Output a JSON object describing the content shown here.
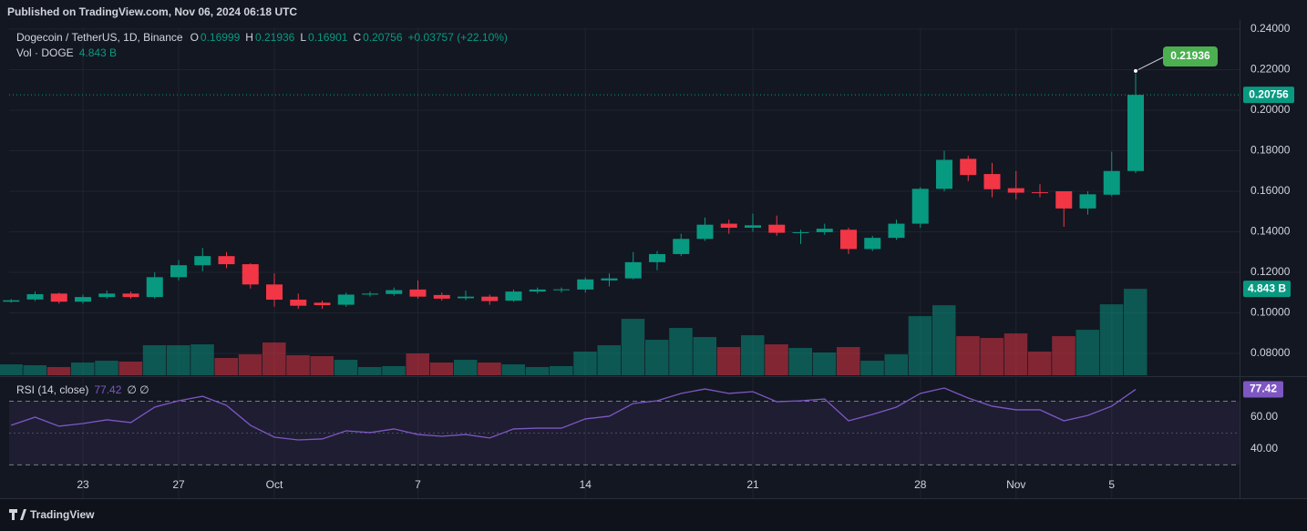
{
  "published": "Published on TradingView.com, Nov 06, 2024 06:18 UTC",
  "footer": {
    "brand": "TradingView"
  },
  "chart_data": {
    "type": "candlestick",
    "title": "Dogecoin / TetherUS, 1D, Binance",
    "ohlc_letters": [
      "O",
      "H",
      "L",
      "C"
    ],
    "change_label": "+0.03757 (+22.10%)",
    "volume_title": "Vol · DOGE",
    "volume_label": "4.843 B",
    "categories": [
      null,
      null,
      null,
      "23",
      null,
      null,
      null,
      "27",
      null,
      null,
      null,
      "Oct",
      null,
      null,
      null,
      null,
      null,
      "7",
      null,
      null,
      null,
      null,
      null,
      null,
      "14",
      null,
      null,
      null,
      null,
      null,
      null,
      "21",
      null,
      null,
      null,
      null,
      null,
      null,
      "28",
      null,
      null,
      null,
      "Nov",
      null,
      null,
      null,
      "5",
      null
    ],
    "open": [
      0.1055,
      0.1066,
      0.1095,
      0.1055,
      0.1078,
      0.1095,
      0.1078,
      0.1176,
      0.1235,
      0.128,
      0.124,
      0.114,
      0.1065,
      0.105,
      0.104,
      0.109,
      0.1093,
      0.1115,
      0.1088,
      0.1072,
      0.108,
      0.106,
      0.1105,
      0.1112,
      0.1115,
      0.116,
      0.117,
      0.125,
      0.129,
      0.1365,
      0.144,
      0.142,
      0.1435,
      0.1395,
      0.1398,
      0.141,
      0.1315,
      0.137,
      0.144,
      0.1612,
      0.176,
      0.1685,
      0.1615,
      0.1595,
      0.16,
      0.1515,
      0.1583,
      0.16999
    ],
    "high": [
      0.1068,
      0.1105,
      0.11,
      0.109,
      0.111,
      0.1105,
      0.12,
      0.126,
      0.132,
      0.13,
      0.1245,
      0.1195,
      0.1095,
      0.106,
      0.11,
      0.1105,
      0.1125,
      0.116,
      0.11,
      0.111,
      0.109,
      0.1115,
      0.1125,
      0.1125,
      0.1175,
      0.1195,
      0.13,
      0.1305,
      0.139,
      0.147,
      0.146,
      0.149,
      0.148,
      0.141,
      0.144,
      0.142,
      0.138,
      0.146,
      0.162,
      0.18,
      0.1775,
      0.174,
      0.17,
      0.1635,
      0.16,
      0.16,
      0.1795,
      0.21936
    ],
    "low": [
      0.105,
      0.1058,
      0.1045,
      0.1045,
      0.107,
      0.107,
      0.107,
      0.116,
      0.1205,
      0.122,
      0.112,
      0.103,
      0.102,
      0.102,
      0.103,
      0.108,
      0.1085,
      0.107,
      0.106,
      0.1062,
      0.104,
      0.1055,
      0.1095,
      0.11,
      0.11,
      0.113,
      0.1165,
      0.121,
      0.128,
      0.1355,
      0.139,
      0.14,
      0.138,
      0.134,
      0.1385,
      0.129,
      0.1305,
      0.136,
      0.142,
      0.16,
      0.165,
      0.157,
      0.156,
      0.157,
      0.1425,
      0.1485,
      0.1575,
      0.16901
    ],
    "close": [
      0.1062,
      0.1092,
      0.1055,
      0.1078,
      0.1095,
      0.1078,
      0.1176,
      0.1235,
      0.128,
      0.124,
      0.114,
      0.1065,
      0.1035,
      0.1038,
      0.109,
      0.1095,
      0.1112,
      0.108,
      0.107,
      0.108,
      0.1058,
      0.1105,
      0.1115,
      0.1116,
      0.1165,
      0.117,
      0.125,
      0.129,
      0.1365,
      0.1435,
      0.142,
      0.1432,
      0.1395,
      0.1398,
      0.1415,
      0.1315,
      0.137,
      0.144,
      0.1612,
      0.1755,
      0.168,
      0.161,
      0.1593,
      0.1592,
      0.1515,
      0.1585,
      0.17,
      0.20756
    ],
    "ylim": [
      0.0692,
      0.2409
    ],
    "yticks": [
      {
        "value": 0.08,
        "label": "0.08000"
      },
      {
        "value": 0.1,
        "label": "0.10000"
      },
      {
        "value": 0.12,
        "label": "0.12000"
      },
      {
        "value": 0.14,
        "label": "0.14000"
      },
      {
        "value": 0.16,
        "label": "0.16000"
      },
      {
        "value": 0.18,
        "label": "0.18000"
      },
      {
        "value": 0.2,
        "label": "0.20000"
      },
      {
        "value": 0.22,
        "label": "0.22000"
      },
      {
        "value": 0.24,
        "label": "0.24000"
      }
    ],
    "up_color": "#089981",
    "down_color": "#f23645",
    "volume": [
      0.612,
      0.561,
      0.459,
      0.714,
      0.816,
      0.765,
      1.682,
      1.682,
      1.733,
      0.969,
      1.173,
      1.835,
      1.122,
      1.071,
      0.867,
      0.459,
      0.51,
      1.224,
      0.714,
      0.867,
      0.714,
      0.612,
      0.459,
      0.51,
      1.326,
      1.682,
      3.161,
      1.988,
      2.651,
      2.141,
      1.58,
      2.243,
      1.733,
      1.529,
      1.275,
      1.58,
      0.816,
      1.173,
      3.314,
      3.925,
      2.192,
      2.09,
      2.345,
      1.325,
      2.192,
      2.549,
      3.976,
      4.843
    ],
    "vol_ylim": [
      0,
      19.5
    ],
    "rsi": {
      "title": "RSI (14, close)",
      "flags": "∅ ∅",
      "color": "#7e57c2",
      "values": [
        54.9,
        60,
        54.3,
        56,
        58.3,
        56.6,
        66.3,
        70.3,
        73.1,
        67.4,
        54.9,
        47.4,
        45.7,
        46.3,
        51.4,
        50.3,
        52.6,
        49.1,
        48,
        49.1,
        46.9,
        52.6,
        53.1,
        53.1,
        58.9,
        60.6,
        68.6,
        70.3,
        74.9,
        77.7,
        74.9,
        76,
        69.7,
        70.3,
        71.4,
        57.7,
        61.7,
        66.3,
        74.9,
        78.3,
        72,
        66.9,
        64.6,
        64.6,
        57.7,
        61.1,
        66.9,
        77.42
      ],
      "ylim": [
        29.1,
        84.6
      ],
      "yticks": [
        {
          "value": 40,
          "label": "40.00"
        },
        {
          "value": 60,
          "label": "60.00"
        }
      ],
      "bands": [
        70,
        50,
        30
      ]
    }
  }
}
